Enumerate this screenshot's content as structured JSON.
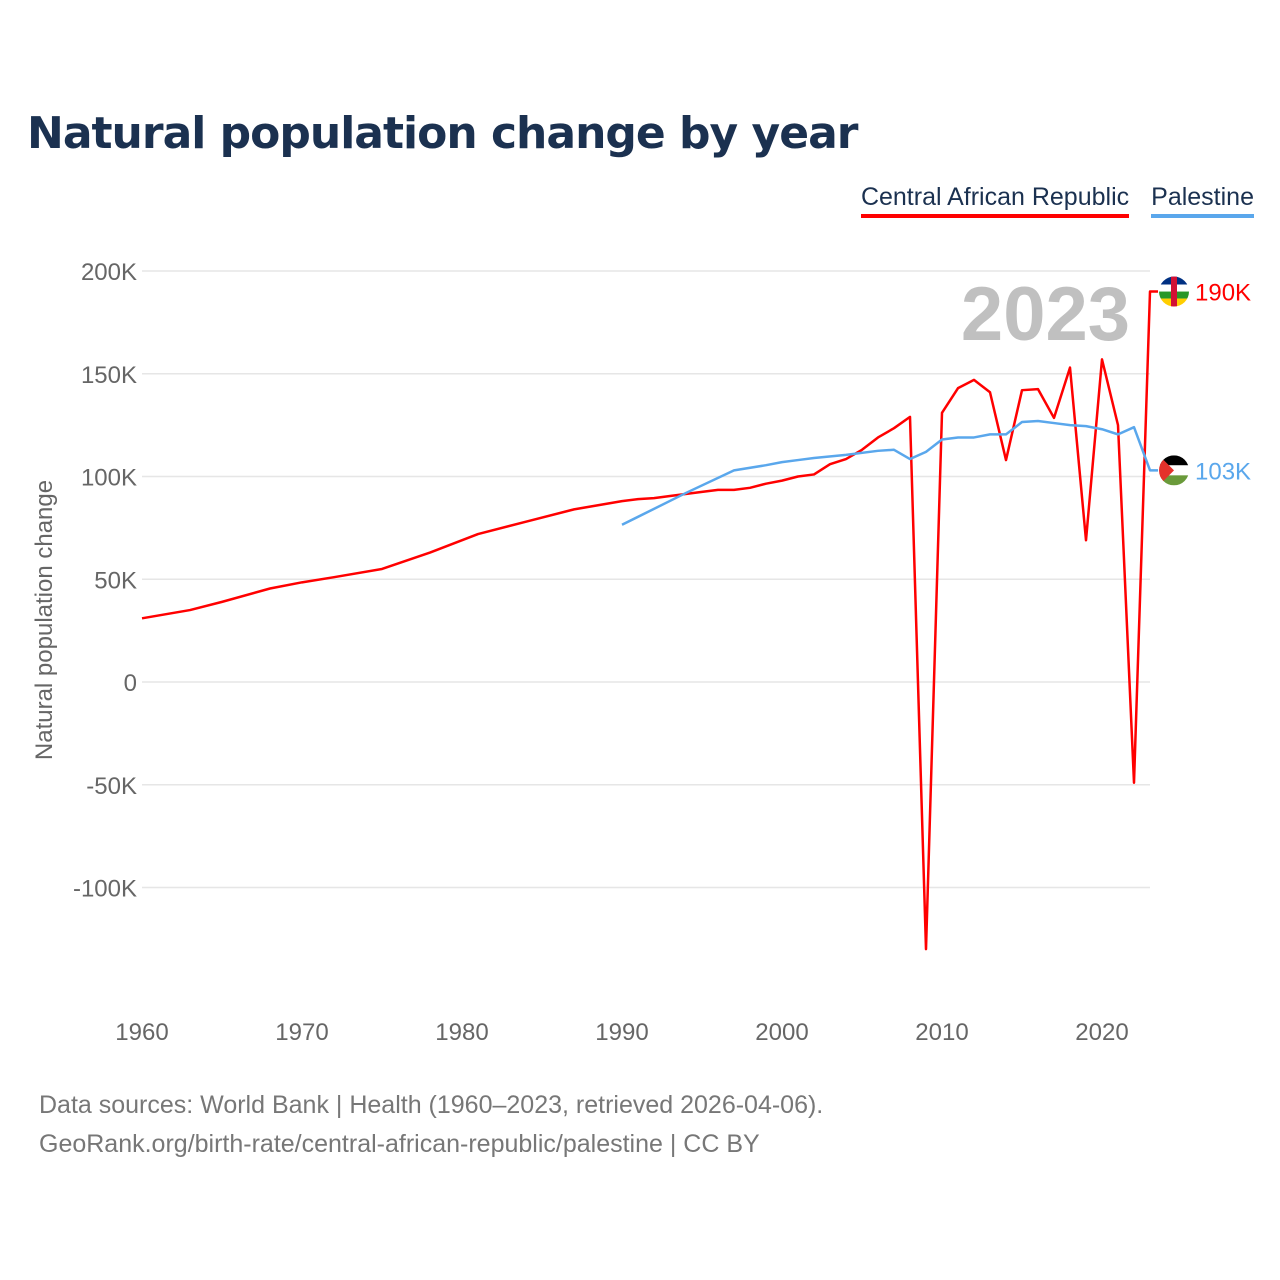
{
  "chart_data": {
    "type": "line",
    "title": "Natural population change by year",
    "ylabel": "Natural population change",
    "xlabel": "",
    "ylim": [
      -150000,
      200000
    ],
    "xlim": [
      1960,
      2023
    ],
    "yticks": [
      {
        "v": 200000,
        "label": "200K"
      },
      {
        "v": 150000,
        "label": "150K"
      },
      {
        "v": 100000,
        "label": "100K"
      },
      {
        "v": 50000,
        "label": "50K"
      },
      {
        "v": 0,
        "label": "0"
      },
      {
        "v": -50000,
        "label": "-50K"
      },
      {
        "v": -100000,
        "label": "-100K"
      }
    ],
    "xticks": [
      {
        "v": 1960,
        "label": "1960"
      },
      {
        "v": 1970,
        "label": "1970"
      },
      {
        "v": 1980,
        "label": "1980"
      },
      {
        "v": 1990,
        "label": "1990"
      },
      {
        "v": 2000,
        "label": "2000"
      },
      {
        "v": 2010,
        "label": "2010"
      },
      {
        "v": 2020,
        "label": "2020"
      }
    ],
    "grid": true,
    "legend_placement": "top-right",
    "year_label": "2023",
    "series": [
      {
        "name": "Central African Republic",
        "color": "#ff0000",
        "end_label": "190K",
        "x": [
          1960,
          1963,
          1965,
          1968,
          1970,
          1972,
          1975,
          1978,
          1981,
          1984,
          1987,
          1990,
          1991,
          1992,
          1993,
          1995,
          1996,
          1997,
          1998,
          1999,
          2000,
          2001,
          2002,
          2003,
          2004,
          2005,
          2006,
          2007,
          2008,
          2009,
          2010,
          2011,
          2012,
          2013,
          2014,
          2015,
          2016,
          2017,
          2018,
          2019,
          2020,
          2021,
          2022,
          2023
        ],
        "y": [
          31000,
          35000,
          39000,
          45500,
          48500,
          51000,
          55000,
          63000,
          72000,
          78000,
          84000,
          88000,
          89000,
          89500,
          90500,
          92500,
          93500,
          93500,
          94500,
          96500,
          98000,
          100000,
          101000,
          106000,
          108500,
          113000,
          119000,
          123500,
          129000,
          -130000,
          131000,
          143000,
          147000,
          141000,
          108000,
          142000,
          142500,
          128500,
          153000,
          69000,
          157000,
          125000,
          -49000,
          190000
        ]
      },
      {
        "name": "Palestine",
        "color": "#5aa7ec",
        "end_label": "103K",
        "x": [
          1990,
          1994,
          1997,
          1999,
          2000,
          2001,
          2002,
          2004,
          2006,
          2007,
          2008,
          2009,
          2010,
          2011,
          2012,
          2013,
          2014,
          2015,
          2016,
          2017,
          2018,
          2019,
          2020,
          2021,
          2022,
          2023
        ],
        "y": [
          76500,
          92000,
          103000,
          105500,
          107000,
          108000,
          109000,
          110500,
          112500,
          113000,
          108500,
          112000,
          118000,
          119000,
          119000,
          120500,
          120500,
          126500,
          127000,
          126000,
          125000,
          124500,
          123000,
          120500,
          124000,
          103000
        ]
      }
    ]
  },
  "footer": {
    "line1": "Data sources: World Bank | Health (1960–2023, retrieved 2026-04-06).",
    "line2": "GeoRank.org/birth-rate/central-african-republic/palestine | CC BY"
  }
}
